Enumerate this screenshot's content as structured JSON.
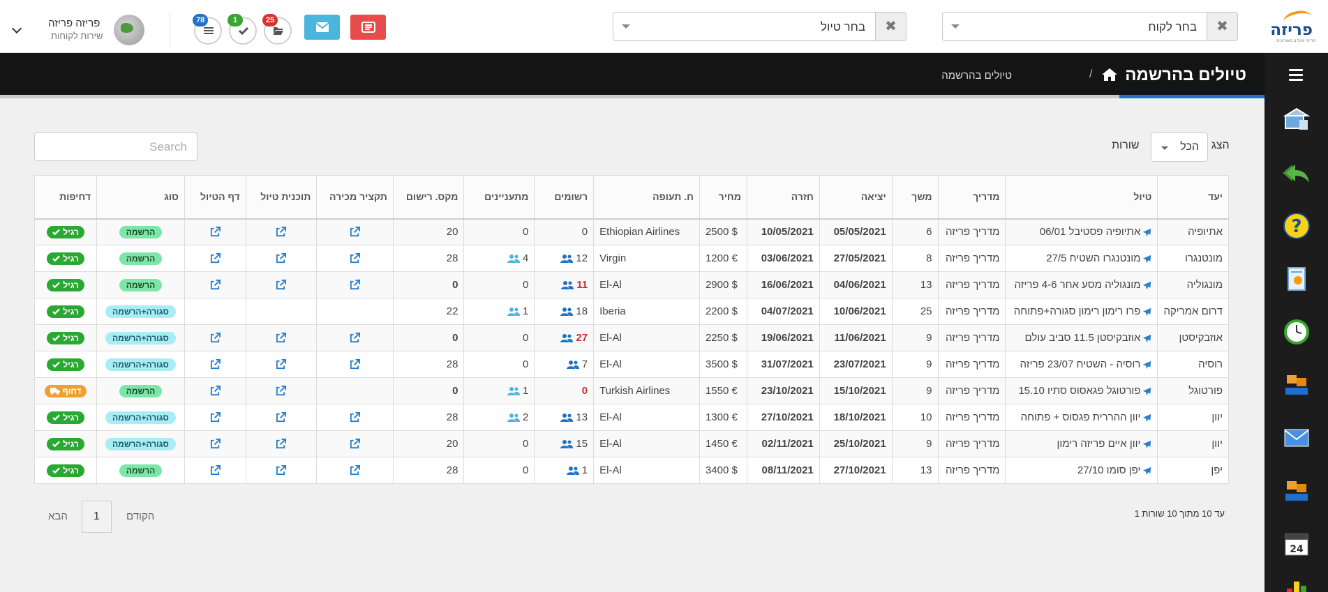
{
  "header": {
    "logo_text": "פריזה",
    "logo_sub": "פריזה טיולים מאורגנים",
    "customer_select": {
      "value": "בחר לקוח"
    },
    "trip_select": {
      "value": "בחר טיול"
    },
    "badges": {
      "folders": "25",
      "tasks": "1",
      "list": "78"
    },
    "user": {
      "name": "פריזה פריזה",
      "role": "שירות לקוחות"
    }
  },
  "breadcrumb": {
    "title": "טיולים בהרשמה",
    "separator": "/",
    "current": "טיולים בהרשמה"
  },
  "controls": {
    "show_label": "הצג",
    "length_value": "הכל",
    "rows_label": "שורות",
    "search_placeholder": "Search"
  },
  "table": {
    "columns": [
      "יעד",
      "טיול",
      "מדריך",
      "משך",
      "יציאה",
      "חזרה",
      "מחיר",
      "ח. תעופה",
      "רשומים",
      "מתעניינים",
      "מקס. רישום",
      "תקציר מכירה",
      "תוכנית טיול",
      "דף הטיול",
      "סוג",
      "דחיפות"
    ],
    "rows": [
      {
        "dest": "אתיופיה",
        "trip": "אתיופיה פסטיבל 06/01",
        "guide": "מדריך פריזה",
        "days": "6",
        "out": "05/05/2021",
        "back": "10/05/2021",
        "price": "2500 $",
        "airline": "Ethiopian Airlines",
        "registered": "0",
        "reg_style": "plain",
        "reg_icon": false,
        "interested": "0",
        "int_icon": false,
        "max": "20",
        "max_style": "plain",
        "summary": true,
        "plan": true,
        "page": true,
        "type": "הרשמה",
        "type_style": "reg",
        "urgency": "רגיל",
        "urg_style": "green"
      },
      {
        "dest": "מונטנגרו",
        "trip": "מונטנגרו השטיח 27/5",
        "guide": "מדריך פריזה",
        "days": "8",
        "out": "27/05/2021",
        "back": "03/06/2021",
        "price": "1200 €",
        "airline": "Virgin",
        "registered": "12",
        "reg_style": "plain",
        "reg_icon": true,
        "interested": "4",
        "int_icon": true,
        "max": "28",
        "max_style": "plain",
        "summary": true,
        "plan": true,
        "page": true,
        "type": "הרשמה",
        "type_style": "reg",
        "urgency": "רגיל",
        "urg_style": "green"
      },
      {
        "dest": "מונגוליה",
        "trip": "מונגוליה מסע אחר 4-6 פריזה",
        "guide": "מדריך פריזה",
        "days": "13",
        "out": "04/06/2021",
        "back": "16/06/2021",
        "price": "2900 $",
        "airline": "El-Al",
        "registered": "11",
        "reg_style": "red",
        "reg_icon": true,
        "interested": "0",
        "int_icon": false,
        "max": "0",
        "max_style": "orange",
        "summary": true,
        "plan": true,
        "page": true,
        "type": "הרשמה",
        "type_style": "reg",
        "urgency": "רגיל",
        "urg_style": "green"
      },
      {
        "dest": "דרום אמריקה",
        "trip": "פרו רימון רימון סגורה+פתוחה",
        "guide": "מדריך פריזה",
        "days": "25",
        "out": "10/06/2021",
        "back": "04/07/2021",
        "price": "2200 $",
        "airline": "Iberia",
        "registered": "18",
        "reg_style": "plain",
        "reg_icon": true,
        "interested": "1",
        "int_icon": true,
        "max": "22",
        "max_style": "plain",
        "summary": false,
        "plan": false,
        "page": false,
        "type": "סגורה+הרשמה",
        "type_style": "closed",
        "urgency": "רגיל",
        "urg_style": "green"
      },
      {
        "dest": "אוזבקיסטן",
        "trip": "אוזבקיסטן 11.5 סביב עולם",
        "guide": "מדריך פריזה",
        "days": "9",
        "out": "11/06/2021",
        "back": "19/06/2021",
        "price": "2250 $",
        "airline": "El-Al",
        "registered": "27",
        "reg_style": "red",
        "reg_icon": true,
        "interested": "0",
        "int_icon": false,
        "max": "0",
        "max_style": "orange",
        "summary": true,
        "plan": true,
        "page": true,
        "type": "סגורה+הרשמה",
        "type_style": "closed",
        "urgency": "רגיל",
        "urg_style": "green"
      },
      {
        "dest": "רוסיה",
        "trip": "רוסיה - השטיח 23/07 פריזה",
        "guide": "מדריך פריזה",
        "days": "9",
        "out": "23/07/2021",
        "back": "31/07/2021",
        "price": "3500 $",
        "airline": "El-Al",
        "registered": "7",
        "reg_style": "plain",
        "reg_icon": true,
        "interested": "0",
        "int_icon": false,
        "max": "28",
        "max_style": "plain",
        "summary": true,
        "plan": true,
        "page": true,
        "type": "סגורה+הרשמה",
        "type_style": "closed",
        "urgency": "רגיל",
        "urg_style": "green"
      },
      {
        "dest": "פורטוגל",
        "trip": "פורטוגל פגאסוס סתיו 15.10",
        "guide": "מדריך פריזה",
        "days": "9",
        "out": "15/10/2021",
        "back": "23/10/2021",
        "price": "1550 €",
        "airline": "Turkish Airlines",
        "registered": "0",
        "reg_style": "red",
        "reg_icon": false,
        "interested": "1",
        "int_icon": true,
        "max": "0",
        "max_style": "orange",
        "summary": false,
        "plan": true,
        "page": true,
        "type": "הרשמה",
        "type_style": "reg",
        "urgency": "דחוף",
        "urg_style": "orange"
      },
      {
        "dest": "יוון",
        "trip": "יוון ההררית פגסוס + פתוחה",
        "guide": "מדריך פריזה",
        "days": "10",
        "out": "18/10/2021",
        "back": "27/10/2021",
        "price": "1300 €",
        "airline": "El-Al",
        "registered": "13",
        "reg_style": "plain",
        "reg_icon": true,
        "interested": "2",
        "int_icon": true,
        "max": "28",
        "max_style": "plain",
        "summary": true,
        "plan": true,
        "page": true,
        "type": "סגורה+הרשמה",
        "type_style": "closed",
        "urgency": "רגיל",
        "urg_style": "green"
      },
      {
        "dest": "יוון",
        "trip": "יוון איים פריזה רימון",
        "guide": "מדריך פריזה",
        "days": "9",
        "out": "25/10/2021",
        "back": "02/11/2021",
        "price": "1450 €",
        "airline": "El-Al",
        "registered": "15",
        "reg_style": "plain",
        "reg_icon": true,
        "interested": "0",
        "int_icon": false,
        "max": "20",
        "max_style": "plain",
        "summary": true,
        "plan": true,
        "page": true,
        "type": "סגורה+הרשמה",
        "type_style": "closed",
        "urgency": "רגיל",
        "urg_style": "green"
      },
      {
        "dest": "יפן",
        "trip": "יפן סומו 27/10",
        "guide": "מדריך פריזה",
        "days": "13",
        "out": "27/10/2021",
        "back": "08/11/2021",
        "price": "3400 $",
        "airline": "El-Al",
        "registered": "1",
        "reg_style": "plain",
        "reg_icon": true,
        "interested": "0",
        "int_icon": false,
        "max": "28",
        "max_style": "plain",
        "summary": true,
        "plan": true,
        "page": true,
        "type": "הרשמה",
        "type_style": "reg",
        "urgency": "רגיל",
        "urg_style": "green"
      }
    ]
  },
  "pagination": {
    "info": "1 עד 10 מתוך 10 שורות",
    "prev": "הקודם",
    "page": "1",
    "next": "הבא"
  },
  "colors": {
    "accent_blue": "#1e73c7",
    "date_green": "#3aa62e",
    "date_red": "#c9302c",
    "urgent_orange": "#f0a030"
  }
}
